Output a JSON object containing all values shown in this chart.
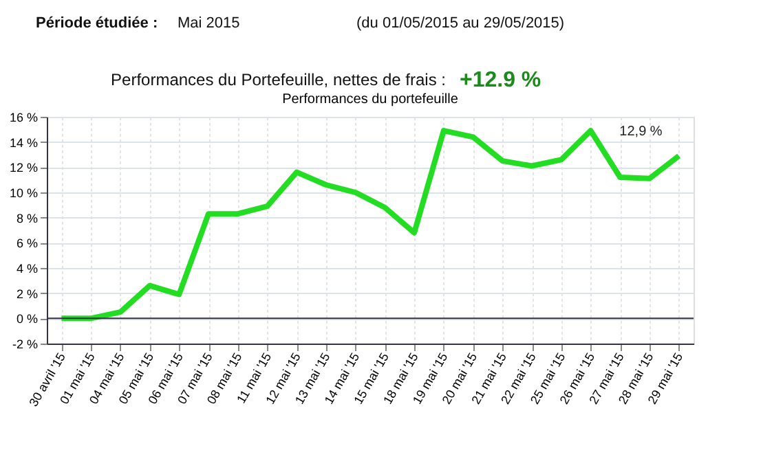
{
  "chart_data": {
    "type": "line",
    "title": "Performances du portefeuille",
    "categories": [
      "30 avril '15",
      "01 mai '15",
      "04 mai '15",
      "05 mai '15",
      "06 mai '15",
      "07 mai '15",
      "08 mai '15",
      "11 mai '15",
      "12 mai '15",
      "13 mai '15",
      "14 mai '15",
      "15 mai '15",
      "18 mai '15",
      "19 mai '15",
      "20 mai '15",
      "21 mai '15",
      "22 mai '15",
      "25 mai '15",
      "26 mai '15",
      "27 mai '15",
      "28 mai '15",
      "29 mai '15"
    ],
    "series": [
      {
        "color": "#22dd22",
        "values": [
          0,
          0,
          0.5,
          2.6,
          1.9,
          8.3,
          8.3,
          8.9,
          11.6,
          10.6,
          10.0,
          8.8,
          6.8,
          14.9,
          14.4,
          12.5,
          12.1,
          12.6,
          14.9,
          11.2,
          11.1,
          12.9
        ]
      }
    ],
    "ylim": [
      -2,
      16
    ],
    "yticks": [
      {
        "value": -2,
        "label": "-2 %"
      },
      {
        "value": 0,
        "label": "0 %"
      },
      {
        "value": 2,
        "label": "2 %"
      },
      {
        "value": 4,
        "label": "4 %"
      },
      {
        "value": 6,
        "label": "6 %"
      },
      {
        "value": 8,
        "label": "8 %"
      },
      {
        "value": 10,
        "label": "10 %"
      },
      {
        "value": 12,
        "label": "12 %"
      },
      {
        "value": 14,
        "label": "14 %"
      },
      {
        "value": 16,
        "label": "16 %"
      }
    ],
    "grid": true,
    "marker": "none",
    "line_style": "solid",
    "annotations": [
      "Période étudiée :",
      "Mai 2015",
      "(du 01/05/2015 au 29/05/2015)",
      "Performances du Portefeuille, nettes de frais  :",
      "+12.9 %",
      {
        "text": "12,9 %",
        "x": "29 mai '15",
        "y": 12.9
      }
    ]
  }
}
